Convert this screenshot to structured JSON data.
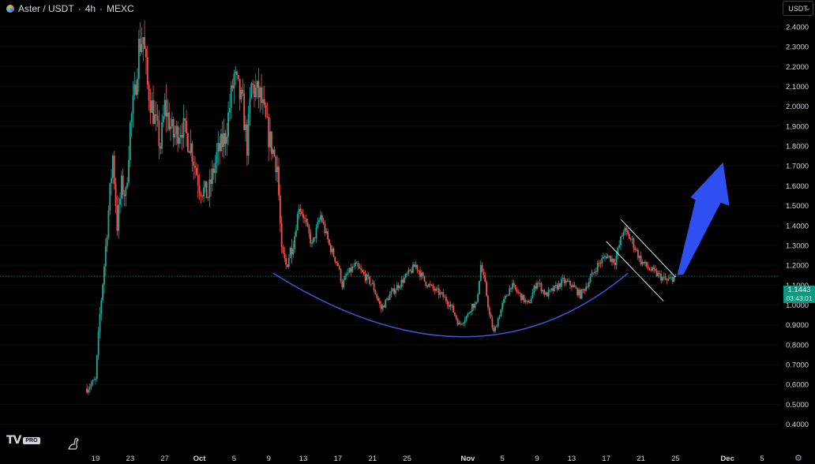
{
  "header": {
    "symbol": "Aster / USDT",
    "interval": "4h",
    "exchange": "MEXC",
    "separator": "·"
  },
  "currency_button": "USDT",
  "price_tag": {
    "price": "1.1443",
    "countdown": "03:43:01"
  },
  "colors": {
    "up": "#26a69a",
    "down": "#ef5350",
    "background": "#000000",
    "curve": "#3d57d6",
    "arrow": "#2f4ff0",
    "channel": "#ffffff"
  },
  "chart_data": {
    "type": "candlestick",
    "title": "Aster / USDT · 4h · MEXC",
    "y_axis": {
      "position": "right",
      "ticks": [
        "2.4000",
        "2.3000",
        "2.2000",
        "2.1000",
        "2.0000",
        "1.9000",
        "1.8000",
        "1.7000",
        "1.6000",
        "1.5000",
        "1.4000",
        "1.3000",
        "1.2000",
        "1.1000",
        "1.0000",
        "0.9000",
        "0.8000",
        "0.7000",
        "0.6000",
        "0.5000",
        "0.4000"
      ],
      "range": [
        0.33,
        2.47
      ]
    },
    "x_axis": {
      "ticks": [
        {
          "label": "19",
          "date": "2025-09-19",
          "bold": false
        },
        {
          "label": "23",
          "date": "2025-09-23",
          "bold": false
        },
        {
          "label": "27",
          "date": "2025-09-27",
          "bold": false
        },
        {
          "label": "Oct",
          "date": "2025-10-01",
          "bold": true
        },
        {
          "label": "5",
          "date": "2025-10-05",
          "bold": false
        },
        {
          "label": "9",
          "date": "2025-10-09",
          "bold": false
        },
        {
          "label": "13",
          "date": "2025-10-13",
          "bold": false
        },
        {
          "label": "17",
          "date": "2025-10-17",
          "bold": false
        },
        {
          "label": "21",
          "date": "2025-10-21",
          "bold": false
        },
        {
          "label": "25",
          "date": "2025-10-25",
          "bold": false
        },
        {
          "label": "Nov",
          "date": "2025-11-01",
          "bold": true
        },
        {
          "label": "5",
          "date": "2025-11-05",
          "bold": false
        },
        {
          "label": "9",
          "date": "2025-11-09",
          "bold": false
        },
        {
          "label": "13",
          "date": "2025-11-13",
          "bold": false
        },
        {
          "label": "17",
          "date": "2025-11-17",
          "bold": false
        },
        {
          "label": "21",
          "date": "2025-11-21",
          "bold": false
        },
        {
          "label": "25",
          "date": "2025-11-25",
          "bold": false
        },
        {
          "label": "Dec",
          "date": "2025-12-01",
          "bold": true
        },
        {
          "label": "5",
          "date": "2025-12-05",
          "bold": false
        }
      ]
    },
    "last_price": 1.1443,
    "price_path": [
      [
        "2025-09-18",
        0.58
      ],
      [
        "2025-09-19",
        0.62
      ],
      [
        "2025-09-19.5",
        0.95
      ],
      [
        "2025-09-20",
        1.2
      ],
      [
        "2025-09-21",
        1.75
      ],
      [
        "2025-09-21.5",
        1.4
      ],
      [
        "2025-09-22",
        1.6
      ],
      [
        "2025-09-22.5",
        1.55
      ],
      [
        "2025-09-23",
        1.9
      ],
      [
        "2025-09-23.5",
        2.05
      ],
      [
        "2025-09-24",
        2.3
      ],
      [
        "2025-09-24.5",
        2.35
      ],
      [
        "2025-09-25",
        2.1
      ],
      [
        "2025-09-26",
        1.9
      ],
      [
        "2025-09-26.5",
        1.8
      ],
      [
        "2025-09-27",
        2.0
      ],
      [
        "2025-09-28",
        1.85
      ],
      [
        "2025-09-29",
        1.9
      ],
      [
        "2025-09-30",
        1.8
      ],
      [
        "2025-10-01",
        1.6
      ],
      [
        "2025-10-02",
        1.55
      ],
      [
        "2025-10-03",
        1.75
      ],
      [
        "2025-10-04",
        1.85
      ],
      [
        "2025-10-05",
        2.15
      ],
      [
        "2025-10-06",
        2.0
      ],
      [
        "2025-10-06.5",
        1.8
      ],
      [
        "2025-10-07",
        2.1
      ],
      [
        "2025-10-08",
        2.05
      ],
      [
        "2025-10-09",
        1.85
      ],
      [
        "2025-10-10",
        1.7
      ],
      [
        "2025-10-10.5",
        1.25
      ],
      [
        "2025-10-11",
        1.2
      ],
      [
        "2025-10-12",
        1.35
      ],
      [
        "2025-10-12.5",
        1.5
      ],
      [
        "2025-10-13",
        1.45
      ],
      [
        "2025-10-14",
        1.3
      ],
      [
        "2025-10-15",
        1.45
      ],
      [
        "2025-10-16",
        1.3
      ],
      [
        "2025-10-17",
        1.2
      ],
      [
        "2025-10-17.5",
        1.1
      ],
      [
        "2025-10-18",
        1.15
      ],
      [
        "2025-10-19",
        1.2
      ],
      [
        "2025-10-20",
        1.15
      ],
      [
        "2025-10-21",
        1.1
      ],
      [
        "2025-10-22",
        0.98
      ],
      [
        "2025-10-23",
        1.05
      ],
      [
        "2025-10-24",
        1.1
      ],
      [
        "2025-10-25",
        1.15
      ],
      [
        "2025-10-26",
        1.2
      ],
      [
        "2025-10-27",
        1.12
      ],
      [
        "2025-10-28",
        1.08
      ],
      [
        "2025-10-29",
        1.05
      ],
      [
        "2025-10-30",
        1.0
      ],
      [
        "2025-10-31",
        0.9
      ],
      [
        "2025-11-01",
        0.95
      ],
      [
        "2025-11-01.5",
        1.0
      ],
      [
        "2025-11-02",
        1.0
      ],
      [
        "2025-11-02.5",
        1.2
      ],
      [
        "2025-11-03",
        1.1
      ],
      [
        "2025-11-03.5",
        0.95
      ],
      [
        "2025-11-04",
        0.86
      ],
      [
        "2025-11-05",
        1.0
      ],
      [
        "2025-11-06",
        1.1
      ],
      [
        "2025-11-07",
        1.05
      ],
      [
        "2025-11-08",
        1.0
      ],
      [
        "2025-11-09",
        1.12
      ],
      [
        "2025-11-10",
        1.05
      ],
      [
        "2025-11-11",
        1.08
      ],
      [
        "2025-11-12",
        1.12
      ],
      [
        "2025-11-13",
        1.1
      ],
      [
        "2025-11-14",
        1.05
      ],
      [
        "2025-11-15",
        1.12
      ],
      [
        "2025-11-16",
        1.2
      ],
      [
        "2025-11-17",
        1.25
      ],
      [
        "2025-11-18",
        1.22
      ],
      [
        "2025-11-19",
        1.38
      ],
      [
        "2025-11-20",
        1.32
      ],
      [
        "2025-11-21",
        1.22
      ],
      [
        "2025-11-22",
        1.18
      ],
      [
        "2025-11-23",
        1.15
      ],
      [
        "2025-11-24",
        1.12
      ],
      [
        "2025-11-25",
        1.1443
      ]
    ],
    "annotations": [
      {
        "type": "rounded-bottom-curve",
        "color": "#3d57d6"
      },
      {
        "type": "descending-channel",
        "color": "#ffffff"
      },
      {
        "type": "bullish-arrow",
        "color": "#2f4ff0"
      }
    ]
  }
}
